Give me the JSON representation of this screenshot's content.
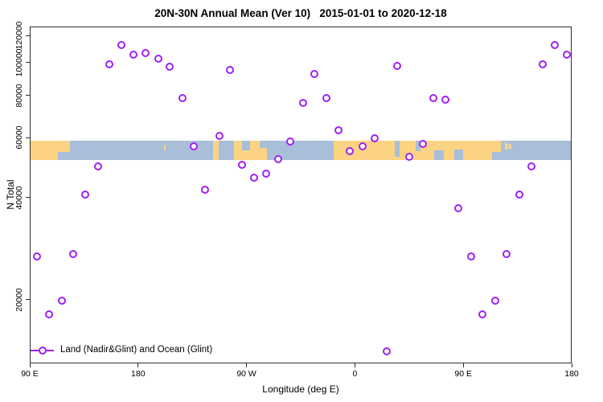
{
  "title": "20N-30N Annual Mean (Ver 10)   2015-01-01 to 2020-12-18",
  "x_axis": {
    "label": "Longitude (deg E)",
    "ticks": [
      {
        "deg": 0,
        "label": "90 E"
      },
      {
        "deg": 90,
        "label": "180"
      },
      {
        "deg": 180,
        "label": "90 W"
      },
      {
        "deg": 270,
        "label": "0"
      },
      {
        "deg": 360,
        "label": "90 E"
      },
      {
        "deg": 450,
        "label": "180"
      }
    ]
  },
  "y_axis": {
    "label": "N Total",
    "scale": "log",
    "ticks": [
      {
        "value": 20000,
        "label": "20000"
      },
      {
        "value": 40000,
        "label": "40000"
      },
      {
        "value": 60000,
        "label": "60000"
      },
      {
        "value": 80000,
        "label": "80000"
      },
      {
        "value": 100000,
        "label": "100000"
      },
      {
        "value": 120000,
        "label": "120000"
      }
    ]
  },
  "legend": {
    "label": "Land (Nadir&Glint) and Ocean (Glint)"
  },
  "colors": {
    "marker": "#a020f0",
    "ocean": "#a9bed9",
    "land": "#fbd382",
    "axis": "#2e2e2e"
  },
  "chart_data": {
    "type": "scatter",
    "title": "20N-30N Annual Mean (Ver 10)   2015-01-01 to 2020-12-18",
    "xlabel": "Longitude (deg E)",
    "ylabel": "N Total",
    "x_domain_deg_from_90E": [
      0,
      450
    ],
    "ylim": [
      13000,
      127500
    ],
    "y_scale": "log10",
    "wrap_note": "x axis spans 450 deg starting at 90E; points with lon in [90E,180E] plot twice",
    "map_band": {
      "n_top": 59000,
      "n_bottom": 52000,
      "land_segments_deg": [
        {
          "d0": 0,
          "d1": 32.5
        },
        {
          "d0": 151.5,
          "d1": 156.3
        },
        {
          "d0": 169,
          "d1": 196
        },
        {
          "d0": 252,
          "d1": 390.5
        }
      ],
      "land_specks_deg": [
        {
          "d0": 110.8,
          "d1": 112.2,
          "t": 0.2,
          "b": 0.5
        },
        {
          "d0": 183.5,
          "d1": 186.5,
          "t": 0.35,
          "b": 0.55
        },
        {
          "d0": 187.5,
          "d1": 189.5,
          "t": 0.3,
          "b": 0.5
        },
        {
          "d0": 394,
          "d1": 396.5,
          "t": 0.1,
          "b": 0.45
        },
        {
          "d0": 397.5,
          "d1": 399.5,
          "t": 0.15,
          "b": 0.4
        }
      ],
      "ocean_cuts_deg": [
        {
          "d0": 23,
          "d1": 32.5,
          "t": 0.6,
          "b": 1
        },
        {
          "d0": 157.5,
          "d1": 160,
          "t": 0,
          "b": 0.5
        },
        {
          "d0": 175.5,
          "d1": 182.5,
          "t": 0,
          "b": 0.5
        },
        {
          "d0": 190,
          "d1": 196,
          "t": 0,
          "b": 0.35
        },
        {
          "d0": 302.5,
          "d1": 306.5,
          "t": 0,
          "b": 0.85
        },
        {
          "d0": 319.5,
          "d1": 323.5,
          "t": 0,
          "b": 0.55
        },
        {
          "d0": 335,
          "d1": 343,
          "t": 0.5,
          "b": 1
        },
        {
          "d0": 352,
          "d1": 359,
          "t": 0.45,
          "b": 1
        },
        {
          "d0": 383,
          "d1": 390.5,
          "t": 0.6,
          "b": 1
        }
      ]
    },
    "series": [
      {
        "name": "Land (Nadir&Glint) and Ocean (Glint)",
        "marker": "open-circle",
        "points": [
          {
            "lon": 165.3,
            "n": 113000
          },
          {
            "lon": 175.5,
            "n": 106000
          },
          {
            "lon": 155.5,
            "n": 99000
          },
          {
            "lon": 145.8,
            "n": 49800
          },
          {
            "lon": 135.7,
            "n": 41000
          },
          {
            "lon": 125.5,
            "n": 27400
          },
          {
            "lon": 116.0,
            "n": 20000
          },
          {
            "lon": 105.2,
            "n": 18200
          },
          {
            "lon": 95.6,
            "n": 27000
          },
          {
            "lon": -174.3,
            "n": 107300
          },
          {
            "lon": -163.8,
            "n": 103300
          },
          {
            "lon": -154.3,
            "n": 97500
          },
          {
            "lon": -144.0,
            "n": 78900
          },
          {
            "lon": -134.3,
            "n": 56900
          },
          {
            "lon": -124.9,
            "n": 42500
          },
          {
            "lon": -113.1,
            "n": 61000
          },
          {
            "lon": -104.2,
            "n": 95400
          },
          {
            "lon": -94.6,
            "n": 50300
          },
          {
            "lon": -84.2,
            "n": 46000
          },
          {
            "lon": -74.2,
            "n": 47200
          },
          {
            "lon": -64.6,
            "n": 52100
          },
          {
            "lon": -54.4,
            "n": 58900
          },
          {
            "lon": -43.5,
            "n": 76200
          },
          {
            "lon": -34.5,
            "n": 93200
          },
          {
            "lon": -24.5,
            "n": 79100
          },
          {
            "lon": -14.5,
            "n": 63600
          },
          {
            "lon": -5.1,
            "n": 55200
          },
          {
            "lon": 5.9,
            "n": 56900
          },
          {
            "lon": 16.0,
            "n": 60200
          },
          {
            "lon": 26.0,
            "n": 14200
          },
          {
            "lon": 34.4,
            "n": 98100
          },
          {
            "lon": 44.3,
            "n": 53100
          },
          {
            "lon": 55.6,
            "n": 57900
          },
          {
            "lon": 64.5,
            "n": 79100
          },
          {
            "lon": 74.5,
            "n": 78200
          },
          {
            "lon": 85.0,
            "n": 37400
          }
        ]
      }
    ]
  }
}
